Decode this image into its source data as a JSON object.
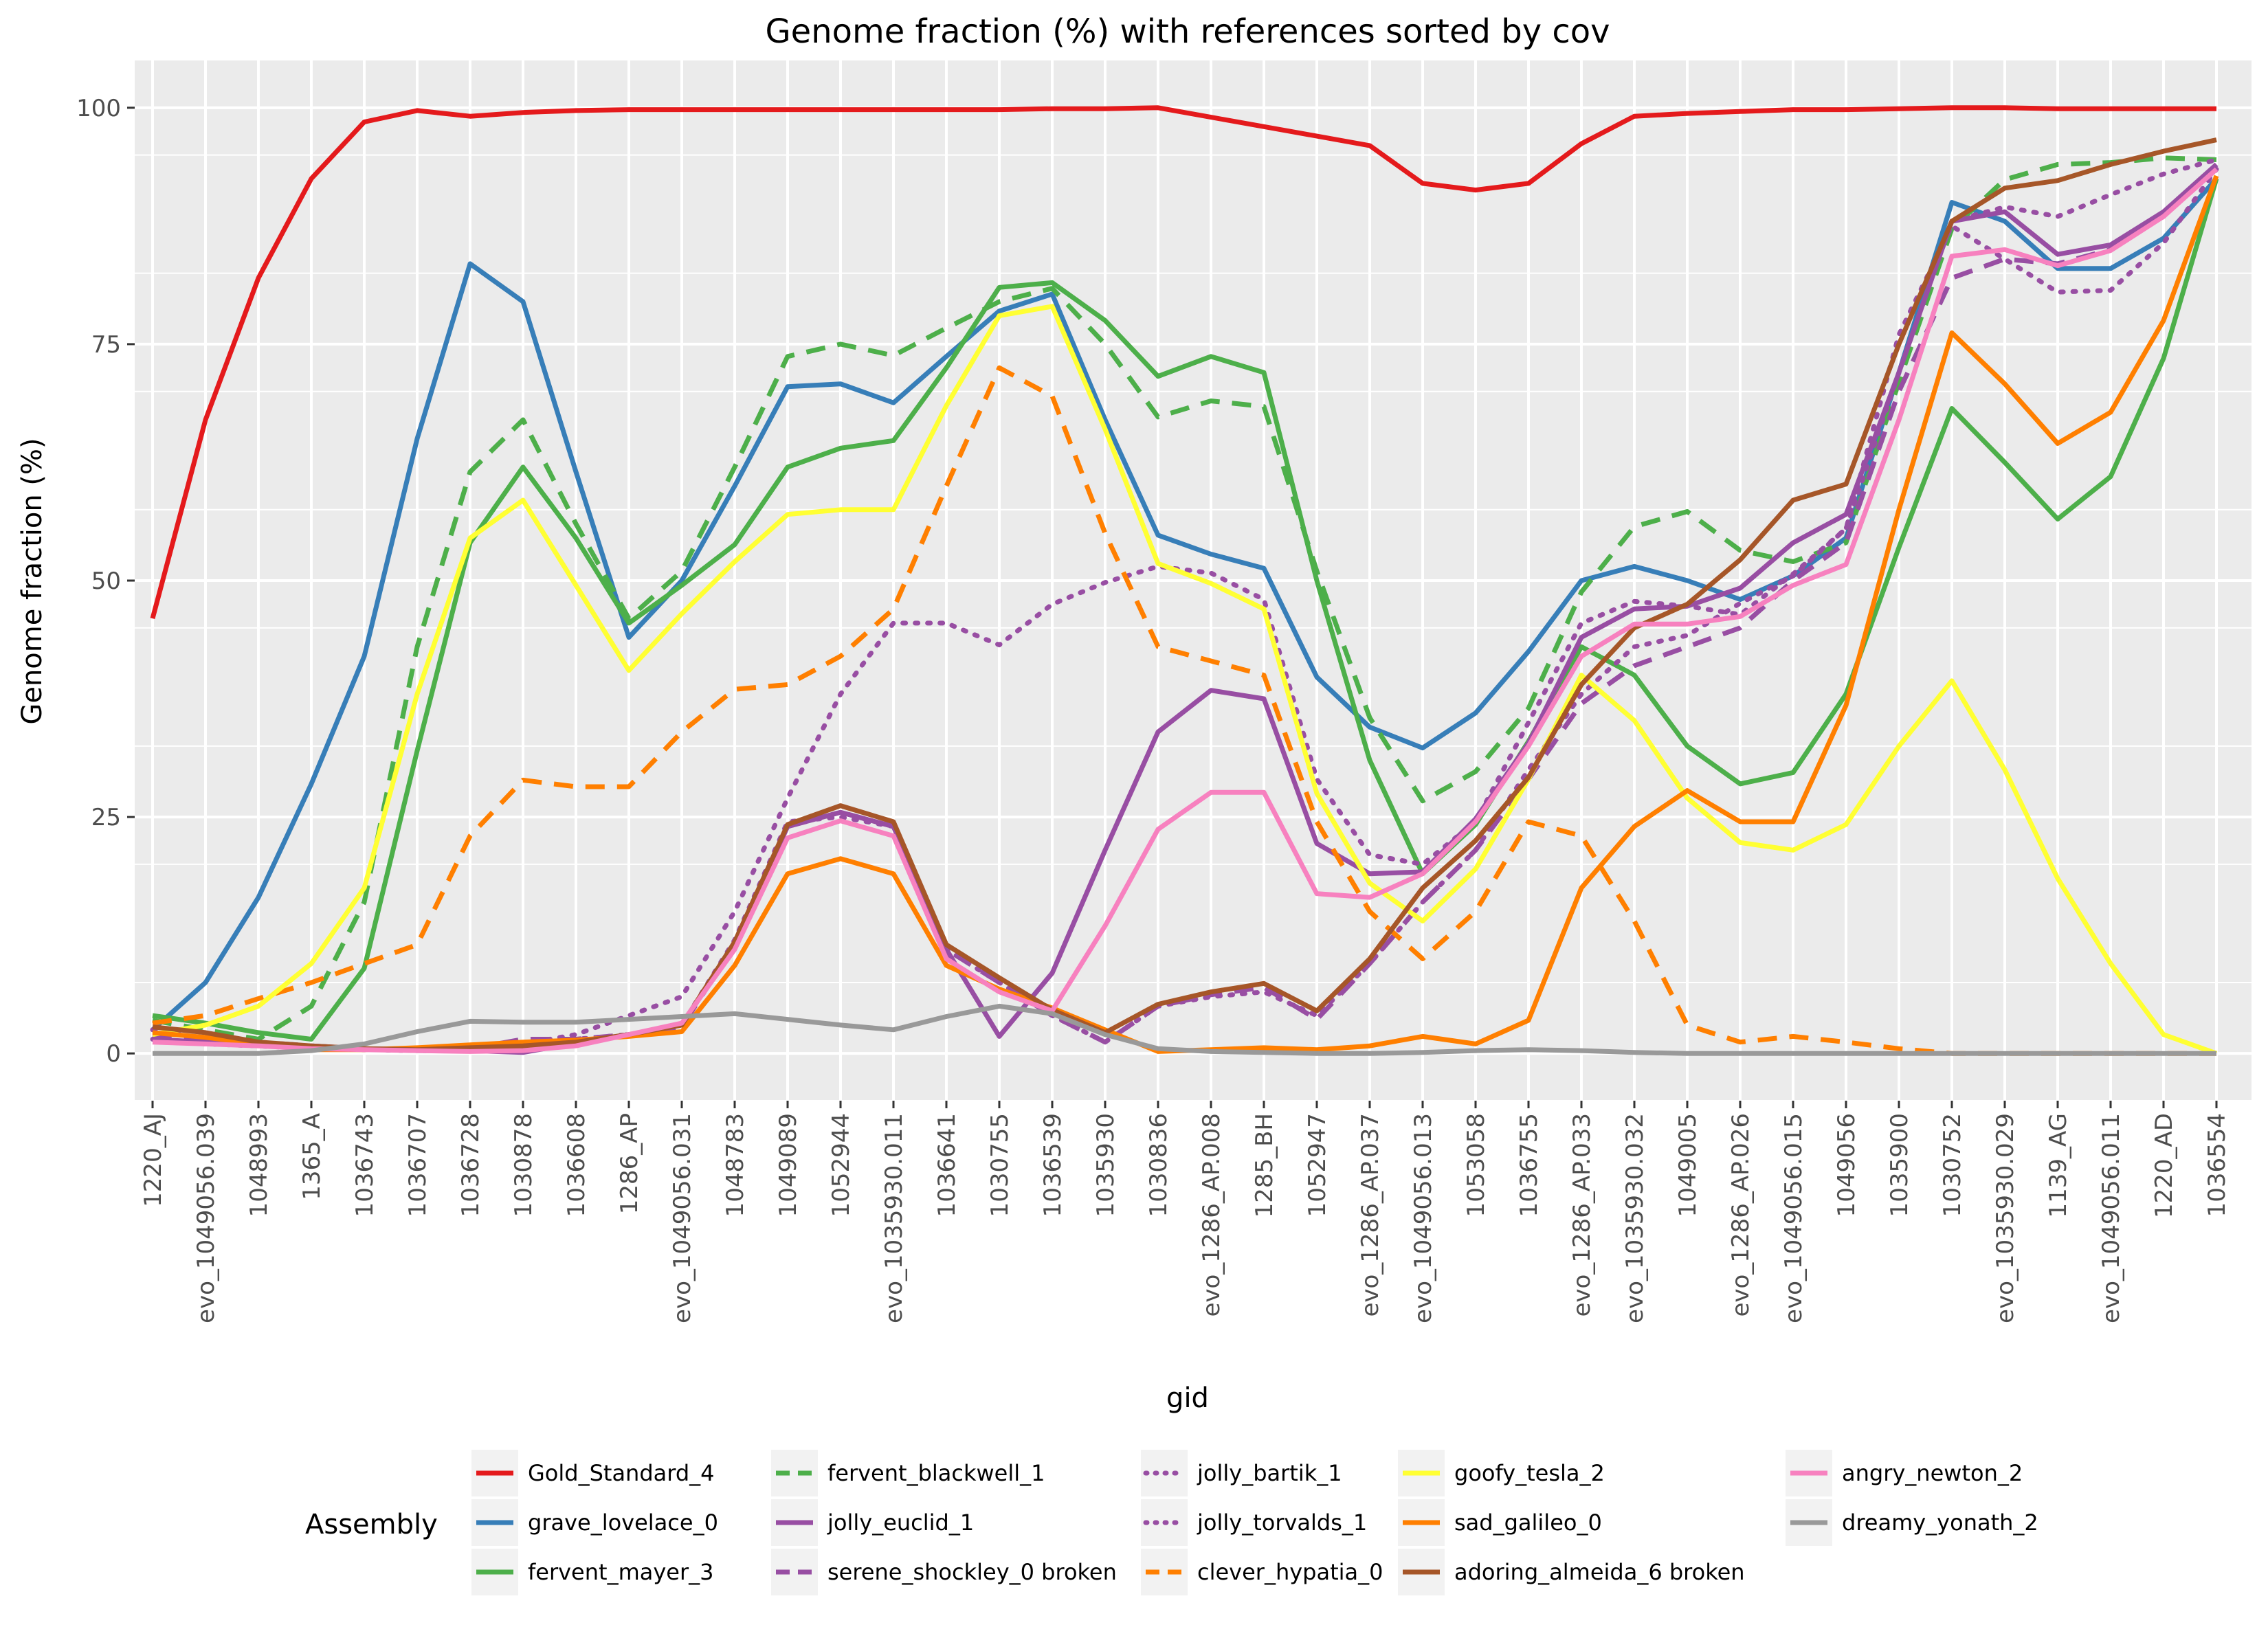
{
  "chart_data": {
    "type": "line",
    "title": "Genome fraction (%) with references sorted by cov",
    "xlabel": "gid",
    "ylabel": "Genome fraction (%)",
    "ylim": [
      -5,
      105
    ],
    "yticks": [
      0,
      25,
      50,
      75,
      100
    ],
    "grid": true,
    "legend_title": "Assembly",
    "legend_position": "bottom",
    "categories": [
      "1220_AJ",
      "evo_1049056.039",
      "1048993",
      "1365_A",
      "1036743",
      "1036707",
      "1036728",
      "1030878",
      "1036608",
      "1286_AP",
      "evo_1049056.031",
      "1048783",
      "1049089",
      "1052944",
      "evo_1035930.011",
      "1036641",
      "1030755",
      "1036539",
      "1035930",
      "1030836",
      "evo_1286_AP.008",
      "1285_BH",
      "1052947",
      "evo_1286_AP.037",
      "evo_1049056.013",
      "1053058",
      "1036755",
      "evo_1286_AP.033",
      "evo_1035930.032",
      "1049005",
      "evo_1286_AP.026",
      "evo_1049056.015",
      "1049056",
      "1035900",
      "1030752",
      "evo_1035930.029",
      "1139_AG",
      "evo_1049056.011",
      "1220_AD",
      "1036554"
    ],
    "series": [
      {
        "name": "Gold_Standard_4",
        "color": "#e41a1c",
        "dash": "solid",
        "values": [
          46,
          67,
          82,
          92.5,
          98.5,
          99.7,
          99.1,
          99.5,
          99.7,
          99.8,
          99.8,
          99.8,
          99.8,
          99.8,
          99.8,
          99.8,
          99.8,
          99.9,
          99.9,
          100,
          99,
          98,
          97,
          96,
          92,
          91.3,
          92,
          96.2,
          99.1,
          99.4,
          99.6,
          99.8,
          99.8,
          99.9,
          100,
          100,
          99.9,
          99.9,
          99.9,
          99.9
        ]
      },
      {
        "name": "grave_lovelace_0",
        "color": "#377eb8",
        "dash": "solid",
        "values": [
          2.5,
          7.5,
          16.5,
          28.5,
          42,
          65,
          83.5,
          79.5,
          61.5,
          44,
          50,
          60,
          70.5,
          70.8,
          68.8,
          73.7,
          78.5,
          80.3,
          67,
          54.8,
          52.8,
          51.3,
          39.8,
          34.5,
          32.3,
          36,
          42.5,
          50,
          51.5,
          50,
          48,
          50.5,
          54.5,
          72,
          90,
          88,
          83,
          83,
          86.2,
          92.5
        ]
      },
      {
        "name": "fervent_mayer_3",
        "color": "#4daf4a",
        "dash": "solid",
        "values": [
          4,
          3.2,
          2.2,
          1.5,
          9,
          32,
          54,
          62,
          54.5,
          45.5,
          49.5,
          53.8,
          62,
          64,
          64.8,
          72.5,
          81,
          81.5,
          77.5,
          71.6,
          73.7,
          72,
          50,
          31,
          19,
          24.2,
          33,
          43,
          40,
          32.5,
          28.5,
          29.7,
          38,
          53.5,
          68.2,
          62.5,
          56.5,
          61,
          73.5,
          92.5
        ]
      },
      {
        "name": "fervent_blackwell_1",
        "color": "#4daf4a",
        "dash": "dash",
        "values": [
          3.5,
          2.5,
          1.5,
          5,
          16,
          43,
          61.5,
          67,
          56,
          46,
          51,
          62,
          73.7,
          75,
          73.8,
          76.7,
          79.5,
          80.9,
          75,
          67.3,
          69,
          68.4,
          51,
          35.5,
          26.7,
          29.8,
          36.5,
          48.8,
          55.7,
          57.3,
          53.2,
          52,
          54,
          71,
          87.2,
          92.4,
          94,
          94.2,
          94.7,
          94.5
        ]
      },
      {
        "name": "jolly_euclid_1",
        "color": "#984ea3",
        "dash": "solid",
        "values": [
          1.5,
          1.2,
          1,
          0.8,
          0.5,
          0.3,
          0.3,
          0.1,
          1.1,
          2,
          3,
          11.5,
          24,
          25.5,
          24,
          11,
          1.8,
          8.5,
          21.5,
          34,
          38.4,
          37.5,
          22.2,
          19,
          19.2,
          24.8,
          32.8,
          44,
          47,
          47.3,
          49.2,
          54,
          57,
          72,
          88,
          89,
          84.5,
          85.5,
          89,
          94
        ]
      },
      {
        "name": "serene_shockley_0 broken",
        "color": "#984ea3",
        "dash": "dash",
        "values": [
          2,
          1.5,
          1.2,
          0.8,
          0.5,
          0.4,
          0.5,
          1.5,
          1.5,
          2,
          2.8,
          11.5,
          24,
          25.5,
          24,
          11,
          7.5,
          4,
          1.2,
          5,
          6.2,
          7,
          3.6,
          9.5,
          16,
          21.5,
          29,
          37,
          41,
          43,
          45,
          50,
          54,
          70,
          82,
          84,
          83.5,
          85,
          88.5,
          94
        ]
      },
      {
        "name": "jolly_bartik_1",
        "color": "#984ea3",
        "dash": "dot",
        "values": [
          1.5,
          1,
          0.8,
          0.5,
          0.4,
          0.3,
          0.5,
          1,
          2,
          4,
          6,
          15,
          27,
          38,
          45.5,
          45.5,
          43.2,
          47.5,
          49.8,
          51.5,
          50.8,
          48,
          29,
          21,
          20,
          24.5,
          35,
          45.5,
          47.8,
          47.3,
          46.4,
          50.7,
          55.5,
          76,
          87.5,
          84,
          80.5,
          80.7,
          85.7,
          93.5
        ]
      },
      {
        "name": "jolly_torvalds_1",
        "color": "#984ea3",
        "dash": "dot",
        "values": [
          2.5,
          1.5,
          1,
          0.5,
          0.4,
          0.3,
          0.3,
          0.5,
          1.5,
          2,
          3,
          12,
          24.5,
          25,
          24,
          11,
          7.5,
          4,
          1.2,
          5,
          6,
          6.5,
          4,
          9.5,
          16,
          21.5,
          30,
          38,
          43,
          44.2,
          47.6,
          50.5,
          55.5,
          72,
          88,
          89.5,
          88.5,
          90.8,
          93,
          94.5
        ]
      },
      {
        "name": "clever_hypatia_0",
        "color": "#ff7f00",
        "dash": "dash",
        "values": [
          3.2,
          4,
          5.8,
          7.5,
          9.5,
          11.5,
          23,
          28.9,
          28.2,
          28.2,
          34,
          38.5,
          39,
          42,
          47,
          60,
          72.5,
          69.5,
          55,
          43,
          41.5,
          40,
          24.5,
          15,
          10,
          15,
          24.5,
          23,
          14,
          3,
          1.2,
          1.8,
          1.2,
          0.5,
          0,
          0,
          0,
          0,
          0,
          0
        ]
      },
      {
        "name": "goofy_tesla_2",
        "color": "#ffff33",
        "dash": "solid",
        "values": [
          2,
          3,
          5,
          9.5,
          17.5,
          38,
          54.5,
          58.5,
          49.5,
          40.5,
          46.5,
          52,
          57,
          57.5,
          57.5,
          68.5,
          78,
          79,
          66,
          51.8,
          49.7,
          47,
          27.5,
          18,
          14,
          19.5,
          29,
          40,
          35.2,
          27,
          22.3,
          21.5,
          24.2,
          32.5,
          39.4,
          30,
          18.5,
          9.5,
          2,
          0
        ]
      },
      {
        "name": "sad_galileo_0",
        "color": "#ff7f00",
        "dash": "solid",
        "values": [
          2.2,
          1.7,
          1,
          0.4,
          0.4,
          0.6,
          0.9,
          1.2,
          1.4,
          1.8,
          2.3,
          9.3,
          19,
          20.6,
          19,
          9.3,
          6.8,
          4.8,
          2.5,
          0.2,
          0.4,
          0.6,
          0.4,
          0.8,
          1.8,
          1,
          3.5,
          17.5,
          24,
          27.8,
          24.5,
          24.5,
          36.8,
          57.5,
          76.2,
          70.8,
          64.5,
          67.8,
          77.5,
          92.8
        ]
      },
      {
        "name": "adoring_almeida_6 broken",
        "color": "#a65628",
        "dash": "solid",
        "values": [
          2.8,
          2.2,
          1.2,
          0.8,
          0.5,
          0.4,
          0.6,
          0.8,
          1.2,
          2,
          3,
          11.8,
          24.2,
          26.2,
          24.5,
          11.5,
          8,
          4.6,
          2.2,
          5.2,
          6.5,
          7.4,
          4.5,
          10,
          17.5,
          22.5,
          29.2,
          39,
          45,
          47.5,
          52.2,
          58.5,
          60.2,
          75,
          88,
          91.5,
          92.3,
          94,
          95.4,
          96.6
        ]
      },
      {
        "name": "angry_newton_2",
        "color": "#f781bf",
        "dash": "solid",
        "values": [
          1.2,
          1,
          0.8,
          0.5,
          0.4,
          0.3,
          0.2,
          0.3,
          0.8,
          2,
          3.2,
          11,
          22.8,
          24.6,
          23,
          10,
          6.5,
          4.5,
          13.5,
          23.7,
          27.6,
          27.6,
          16.9,
          16.5,
          19,
          24.5,
          32.5,
          42,
          45.4,
          45.4,
          46.2,
          49.5,
          51.7,
          67,
          84.3,
          85,
          83.3,
          84.9,
          88.5,
          93.5
        ]
      },
      {
        "name": "dreamy_yonath_2",
        "color": "#999999",
        "dash": "solid",
        "values": [
          0,
          0,
          0,
          0.3,
          1,
          2.3,
          3.4,
          3.3,
          3.3,
          3.6,
          3.9,
          4.2,
          3.6,
          3,
          2.5,
          3.9,
          5,
          4.2,
          2,
          0.5,
          0.2,
          0.1,
          0,
          0,
          0.1,
          0.3,
          0.4,
          0.3,
          0.1,
          0,
          0,
          0,
          0,
          0,
          0,
          0,
          0,
          0,
          0,
          0
        ]
      }
    ]
  }
}
